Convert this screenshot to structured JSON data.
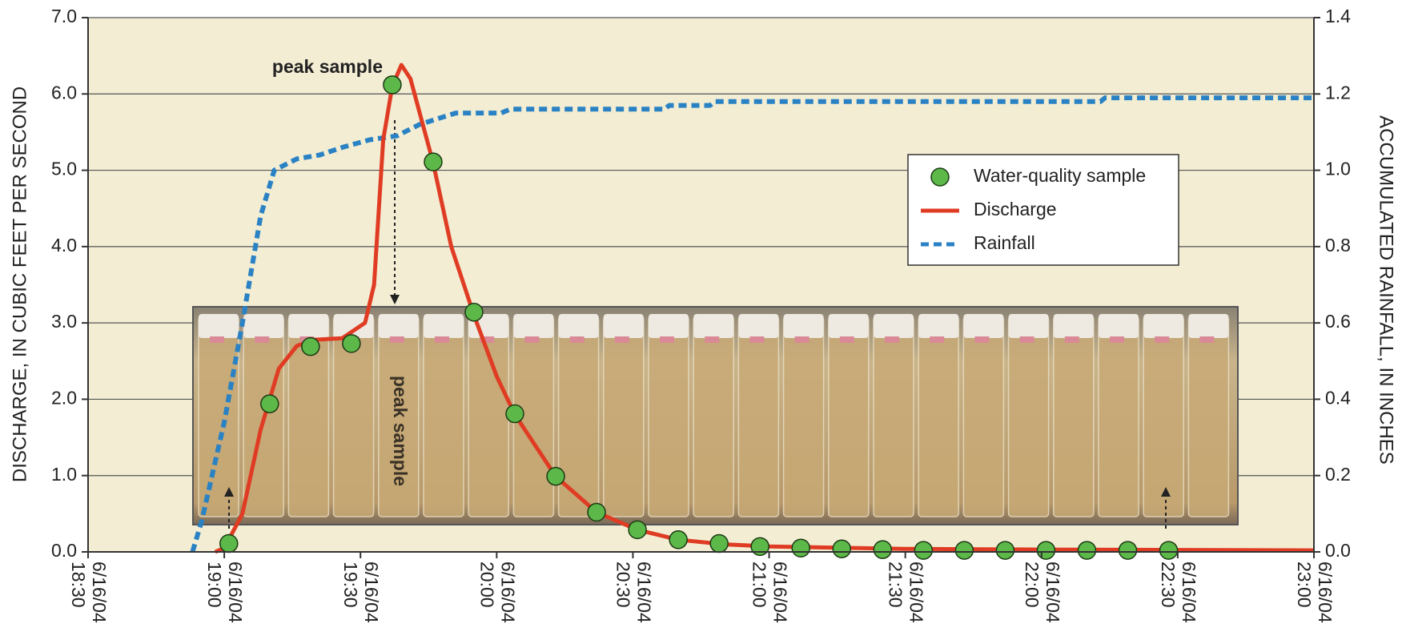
{
  "chart_data": {
    "type": "line",
    "y_label": "DISCHARGE, IN CUBIC FEET PER SECOND",
    "y2_label": "ACCUMULATED RAINFALL, IN INCHES",
    "annotations": [
      "peak sample",
      "peak sample"
    ],
    "xlim": [
      "2004-06-16 18:30",
      "2004-06-16 23:00"
    ],
    "xticks": [
      {
        "value": "2004-06-16 18:30",
        "label": "6/16/04 18:30"
      },
      {
        "value": "2004-06-16 19:00",
        "label": "6/16/04 19:00"
      },
      {
        "value": "2004-06-16 19:30",
        "label": "6/16/04 19:30"
      },
      {
        "value": "2004-06-16 20:00",
        "label": "6/16/04 20:00"
      },
      {
        "value": "2004-06-16 20:30",
        "label": "6/16/04 20:30"
      },
      {
        "value": "2004-06-16 21:00",
        "label": "6/16/04 21:00"
      },
      {
        "value": "2004-06-16 21:30",
        "label": "6/16/04 21:30"
      },
      {
        "value": "2004-06-16 22:00",
        "label": "6/16/04 22:00"
      },
      {
        "value": "2004-06-16 22:30",
        "label": "6/16/04 22:30"
      },
      {
        "value": "2004-06-16 23:00",
        "label": "6/16/04 23:00"
      }
    ],
    "ylim": [
      0,
      7
    ],
    "yticks": [
      {
        "value": 0,
        "label": "0.0"
      },
      {
        "value": 1,
        "label": "1.0"
      },
      {
        "value": 2,
        "label": "2.0"
      },
      {
        "value": 3,
        "label": "3.0"
      },
      {
        "value": 4,
        "label": "4.0"
      },
      {
        "value": 5,
        "label": "5.0"
      },
      {
        "value": 6,
        "label": "6.0"
      },
      {
        "value": 7,
        "label": "7.0"
      }
    ],
    "y2lim": [
      0,
      1.4
    ],
    "y2ticks": [
      {
        "value": 0,
        "label": "0.0"
      },
      {
        "value": 0.2,
        "label": "0.2"
      },
      {
        "value": 0.4,
        "label": "0.4"
      },
      {
        "value": 0.6,
        "label": "0.6"
      },
      {
        "value": 0.8,
        "label": "0.8"
      },
      {
        "value": 1,
        "label": "1.0"
      },
      {
        "value": 1.2,
        "label": "1.2"
      },
      {
        "value": 1.4,
        "label": "1.4"
      }
    ],
    "grid": true,
    "legend": "upper right",
    "series": [
      {
        "name": "Water-quality sample",
        "color": "#5cb848",
        "style": "marker",
        "x": [
          "2004-06-16 19:01",
          "2004-06-16 19:10",
          "2004-06-16 19:19",
          "2004-06-16 19:28",
          "2004-06-16 19:37",
          "2004-06-16 19:46",
          "2004-06-16 19:55",
          "2004-06-16 20:04",
          "2004-06-16 20:13",
          "2004-06-16 20:22",
          "2004-06-16 20:31",
          "2004-06-16 20:40",
          "2004-06-16 20:49",
          "2004-06-16 20:58",
          "2004-06-16 21:07",
          "2004-06-16 21:16",
          "2004-06-16 21:25",
          "2004-06-16 21:34",
          "2004-06-16 21:43",
          "2004-06-16 21:52",
          "2004-06-16 22:01",
          "2004-06-16 22:10",
          "2004-06-16 22:19",
          "2004-06-16 22:28"
        ],
        "values": [
          0.11,
          1.94,
          2.69,
          2.73,
          6.12,
          5.11,
          3.14,
          1.81,
          0.99,
          0.52,
          0.29,
          0.16,
          0.11,
          0.07,
          0.05,
          0.04,
          0.03,
          0.02,
          0.02,
          0.02,
          0.02,
          0.02,
          0.02,
          0.02
        ]
      },
      {
        "name": "Discharge",
        "color": "#e03c24",
        "style": "solid",
        "x": [
          "2004-06-16 18:58",
          "2004-06-16 19:00",
          "2004-06-16 19:04",
          "2004-06-16 19:08",
          "2004-06-16 19:12",
          "2004-06-16 19:16",
          "2004-06-16 19:20",
          "2004-06-16 19:26",
          "2004-06-16 19:31",
          "2004-06-16 19:33",
          "2004-06-16 19:35",
          "2004-06-16 19:37",
          "2004-06-16 19:39",
          "2004-06-16 19:41",
          "2004-06-16 19:46",
          "2004-06-16 19:50",
          "2004-06-16 19:55",
          "2004-06-16 20:00",
          "2004-06-16 20:04",
          "2004-06-16 20:13",
          "2004-06-16 20:22",
          "2004-06-16 20:31",
          "2004-06-16 20:40",
          "2004-06-16 20:50",
          "2004-06-16 21:00",
          "2004-06-16 21:30",
          "2004-06-16 22:00",
          "2004-06-16 23:00"
        ],
        "values": [
          0,
          0.05,
          0.5,
          1.6,
          2.4,
          2.7,
          2.78,
          2.8,
          3.0,
          3.5,
          5.4,
          6.1,
          6.38,
          6.2,
          5.1,
          4.0,
          3.1,
          2.3,
          1.8,
          0.99,
          0.52,
          0.29,
          0.16,
          0.1,
          0.07,
          0.04,
          0.03,
          0.02
        ]
      },
      {
        "name": "Rainfall",
        "color": "#2a82c4",
        "style": "dashed",
        "axis": "y2",
        "x": [
          "2004-06-16 18:53",
          "2004-06-16 18:55",
          "2004-06-16 19:00",
          "2004-06-16 19:04",
          "2004-06-16 19:08",
          "2004-06-16 19:11",
          "2004-06-16 19:16",
          "2004-06-16 19:21",
          "2004-06-16 19:26",
          "2004-06-16 19:32",
          "2004-06-16 19:38",
          "2004-06-16 19:43",
          "2004-06-16 19:51",
          "2004-06-16 20:01",
          "2004-06-16 20:03",
          "2004-06-16 20:37",
          "2004-06-16 20:38",
          "2004-06-16 20:47",
          "2004-06-16 20:48",
          "2004-06-16 22:13",
          "2004-06-16 22:14",
          "2004-06-16 23:00"
        ],
        "values": [
          0,
          0.08,
          0.34,
          0.6,
          0.88,
          1.0,
          1.03,
          1.04,
          1.06,
          1.08,
          1.09,
          1.12,
          1.15,
          1.15,
          1.16,
          1.16,
          1.17,
          1.17,
          1.18,
          1.18,
          1.19,
          1.19
        ]
      }
    ]
  }
}
